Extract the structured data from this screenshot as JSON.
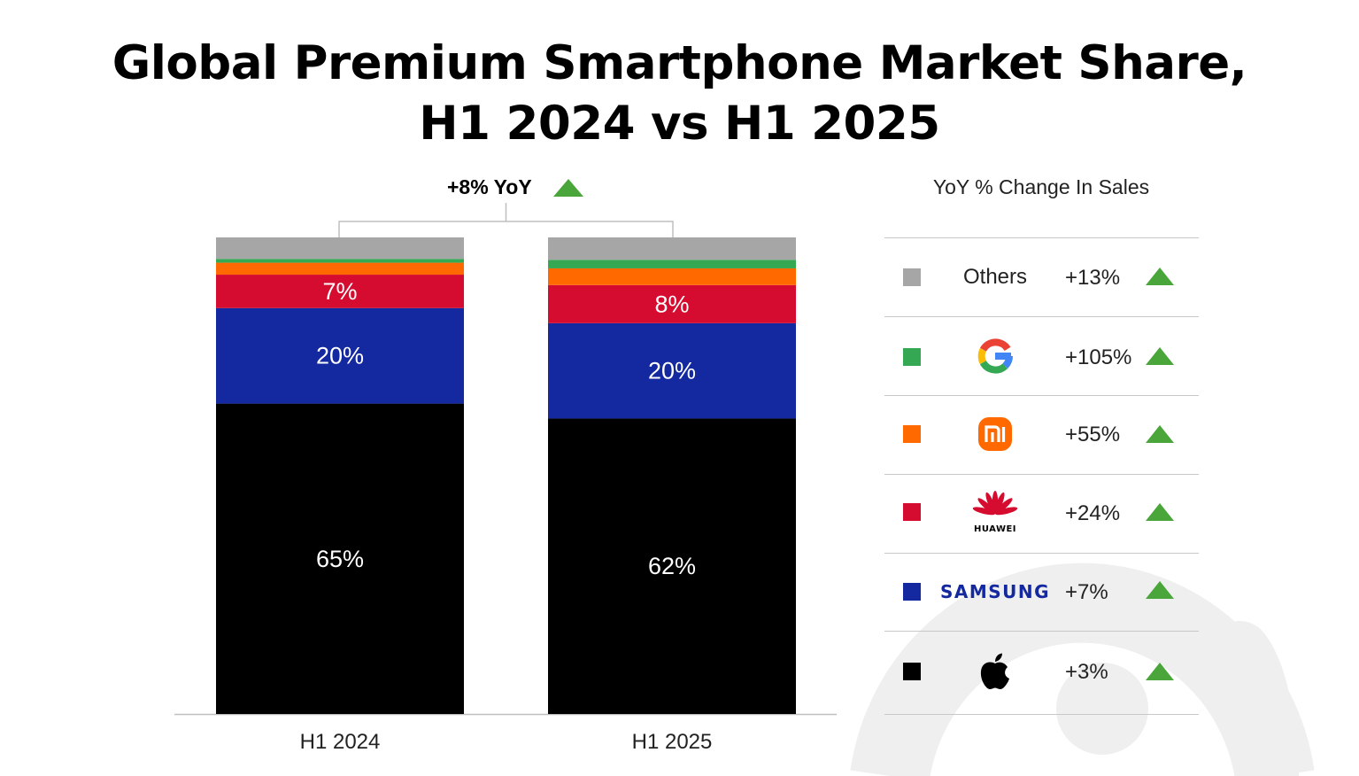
{
  "title_line1": "Global Premium Smartphone Market Share,",
  "title_line2": "H1 2024 vs H1 2025",
  "total_yoy": {
    "label": "+8% YoY",
    "direction": "up"
  },
  "legend": {
    "title": "YoY % Change In Sales",
    "items": [
      {
        "key": "others",
        "name": "Others",
        "logo": "text",
        "color": "#a6a6a6",
        "change": "+13%",
        "direction": "up"
      },
      {
        "key": "google",
        "name": "Google",
        "logo": "google-logo-icon",
        "color": "#34a853",
        "change": "+105%",
        "direction": "up"
      },
      {
        "key": "xiaomi",
        "name": "Xiaomi",
        "logo": "xiaomi-logo-icon",
        "color": "#ff6900",
        "change": "+55%",
        "direction": "up"
      },
      {
        "key": "huawei",
        "name": "HUAWEI",
        "logo": "huawei-logo-icon",
        "color": "#d50c2f",
        "change": "+24%",
        "direction": "up"
      },
      {
        "key": "samsung",
        "name": "SAMSUNG",
        "logo": "samsung-wordmark",
        "color": "#1428a0",
        "change": "+7%",
        "direction": "up"
      },
      {
        "key": "apple",
        "name": "Apple",
        "logo": "apple-logo-icon",
        "color": "#000000",
        "change": "+3%",
        "direction": "up"
      }
    ]
  },
  "colors": {
    "up_arrow": "#4aa53a",
    "axis": "#bfbfbf",
    "bracket": "#bfbfbf"
  },
  "chart_data": {
    "type": "bar",
    "stacked": true,
    "categories": [
      "H1 2024",
      "H1 2025"
    ],
    "ylim": [
      0,
      100
    ],
    "series": [
      {
        "name": "Apple",
        "color": "#000000",
        "values": [
          65,
          62
        ],
        "labels": [
          "65%",
          "62%"
        ]
      },
      {
        "name": "SAMSUNG",
        "color": "#1428a0",
        "values": [
          20,
          20
        ],
        "labels": [
          "20%",
          "20%"
        ]
      },
      {
        "name": "HUAWEI",
        "color": "#d50c2f",
        "values": [
          7,
          8
        ],
        "labels": [
          "7%",
          "8%"
        ]
      },
      {
        "name": "Xiaomi",
        "color": "#ff6900",
        "values": [
          2.5,
          3.5
        ],
        "labels": [
          "",
          ""
        ]
      },
      {
        "name": "Google",
        "color": "#34a853",
        "values": [
          0.8,
          1.8
        ],
        "labels": [
          "",
          ""
        ]
      },
      {
        "name": "Others",
        "color": "#a6a6a6",
        "values": [
          4.5,
          4.7
        ],
        "labels": [
          "",
          ""
        ]
      }
    ],
    "annotations": [
      {
        "text": "+8% YoY",
        "between": [
          "H1 2024",
          "H1 2025"
        ]
      }
    ],
    "legend": "right"
  }
}
